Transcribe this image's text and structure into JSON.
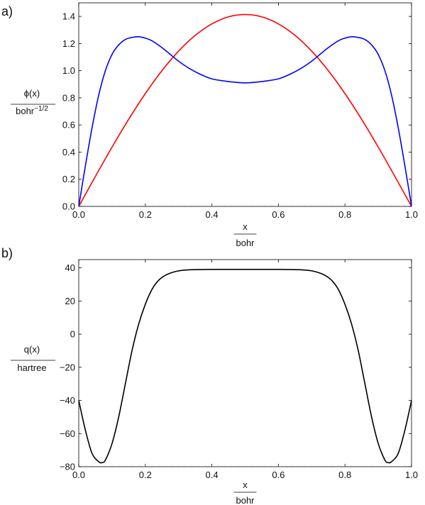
{
  "chart_data": [
    {
      "type": "line",
      "panel_label": "a)",
      "xlabel": {
        "numerator": "x",
        "denominator": "bohr"
      },
      "ylabel": {
        "numerator": "ϕ(x)",
        "denominator_base": "bohr",
        "denominator_sup": "−1/2"
      },
      "xlim": [
        0.0,
        1.0
      ],
      "ylim": [
        0.0,
        1.5
      ],
      "xticks": [
        0.0,
        0.2,
        0.4,
        0.6,
        0.8,
        1.0
      ],
      "xtick_labels": [
        "0.0",
        "0.2",
        "0.4",
        "0.6",
        "0.8",
        "1.0"
      ],
      "yticks": [
        0.0,
        0.2,
        0.4,
        0.6,
        0.8,
        1.0,
        1.2,
        1.4
      ],
      "ytick_labels": [
        "0.0",
        "0.2",
        "0.4",
        "0.6",
        "0.8",
        "1.0",
        "1.2",
        "1.4"
      ],
      "grid": false,
      "series": [
        {
          "color": "#ff0000",
          "x": [
            0.0,
            0.05,
            0.1,
            0.15,
            0.2,
            0.25,
            0.3,
            0.35,
            0.4,
            0.45,
            0.5,
            0.55,
            0.6,
            0.65,
            0.7,
            0.75,
            0.8,
            0.85,
            0.9,
            0.95,
            1.0
          ],
          "y": [
            0.0,
            0.221,
            0.437,
            0.642,
            0.831,
            1.0,
            1.144,
            1.26,
            1.345,
            1.397,
            1.414,
            1.397,
            1.345,
            1.26,
            1.144,
            1.0,
            0.831,
            0.642,
            0.437,
            0.221,
            0.0
          ]
        },
        {
          "color": "#0000ff",
          "x": [
            0.0,
            0.02,
            0.04,
            0.06,
            0.08,
            0.1,
            0.12,
            0.14,
            0.16,
            0.18,
            0.2,
            0.22,
            0.25,
            0.28,
            0.3,
            0.33,
            0.36,
            0.4,
            0.45,
            0.5,
            0.55,
            0.6,
            0.64,
            0.67,
            0.7,
            0.72,
            0.75,
            0.78,
            0.8,
            0.82,
            0.84,
            0.86,
            0.88,
            0.9,
            0.92,
            0.94,
            0.96,
            0.98,
            1.0
          ],
          "y": [
            0.0,
            0.3,
            0.58,
            0.82,
            1.0,
            1.12,
            1.19,
            1.23,
            1.245,
            1.25,
            1.24,
            1.22,
            1.17,
            1.11,
            1.07,
            1.02,
            0.98,
            0.94,
            0.92,
            0.91,
            0.92,
            0.94,
            0.98,
            1.02,
            1.07,
            1.11,
            1.17,
            1.22,
            1.24,
            1.25,
            1.245,
            1.23,
            1.19,
            1.12,
            1.0,
            0.82,
            0.58,
            0.3,
            0.0
          ]
        }
      ]
    },
    {
      "type": "line",
      "panel_label": "b)",
      "xlabel": {
        "numerator": "x",
        "denominator": "bohr"
      },
      "ylabel": {
        "numerator": "q(x)",
        "denominator": "hartree"
      },
      "xlim": [
        0.0,
        1.0
      ],
      "ylim": [
        -80,
        45
      ],
      "xticks": [
        0.0,
        0.2,
        0.4,
        0.6,
        0.8,
        1.0
      ],
      "xtick_labels": [
        "0.0",
        "0.2",
        "0.4",
        "0.6",
        "0.8",
        "1.0"
      ],
      "yticks": [
        -80,
        -60,
        -40,
        -20,
        0,
        20,
        40
      ],
      "ytick_labels": [
        "−80",
        "−60",
        "−40",
        "−20",
        "0",
        "20",
        "40"
      ],
      "grid": false,
      "series": [
        {
          "color": "#000000",
          "x": [
            0.0,
            0.02,
            0.04,
            0.06,
            0.07,
            0.08,
            0.1,
            0.12,
            0.14,
            0.16,
            0.18,
            0.2,
            0.22,
            0.24,
            0.26,
            0.28,
            0.3,
            0.33,
            0.36,
            0.4,
            0.45,
            0.5,
            0.55,
            0.6,
            0.64,
            0.67,
            0.7,
            0.72,
            0.74,
            0.76,
            0.78,
            0.8,
            0.82,
            0.84,
            0.86,
            0.88,
            0.9,
            0.92,
            0.93,
            0.94,
            0.96,
            0.98,
            1.0
          ],
          "y": [
            -40,
            -58,
            -72,
            -77,
            -77.5,
            -76,
            -66,
            -50,
            -30,
            -10,
            6,
            18,
            27,
            32.5,
            35.5,
            37.2,
            38.2,
            38.8,
            39,
            39.1,
            39.1,
            39.1,
            39.1,
            39.1,
            39,
            38.8,
            38.2,
            37.2,
            35.5,
            32.5,
            27,
            18,
            6,
            -10,
            -30,
            -50,
            -66,
            -76,
            -77.5,
            -77,
            -72,
            -58,
            -40
          ]
        }
      ]
    }
  ]
}
